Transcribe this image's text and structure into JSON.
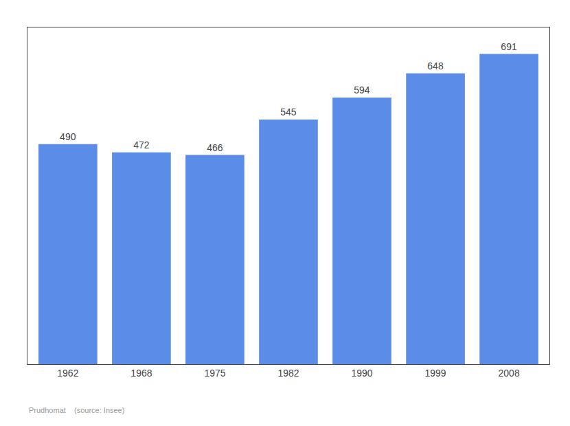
{
  "chart_data": {
    "type": "bar",
    "categories": [
      "1962",
      "1968",
      "1975",
      "1982",
      "1990",
      "1999",
      "2008"
    ],
    "values": [
      490,
      472,
      466,
      545,
      594,
      648,
      691
    ],
    "color": "#5b8de8",
    "ylim": [
      0,
      750
    ],
    "yticks": [],
    "data_labels": true,
    "tick_labels": "x",
    "grid": false,
    "annotations": [
      "Prudhomat    (source: Insee)"
    ]
  }
}
